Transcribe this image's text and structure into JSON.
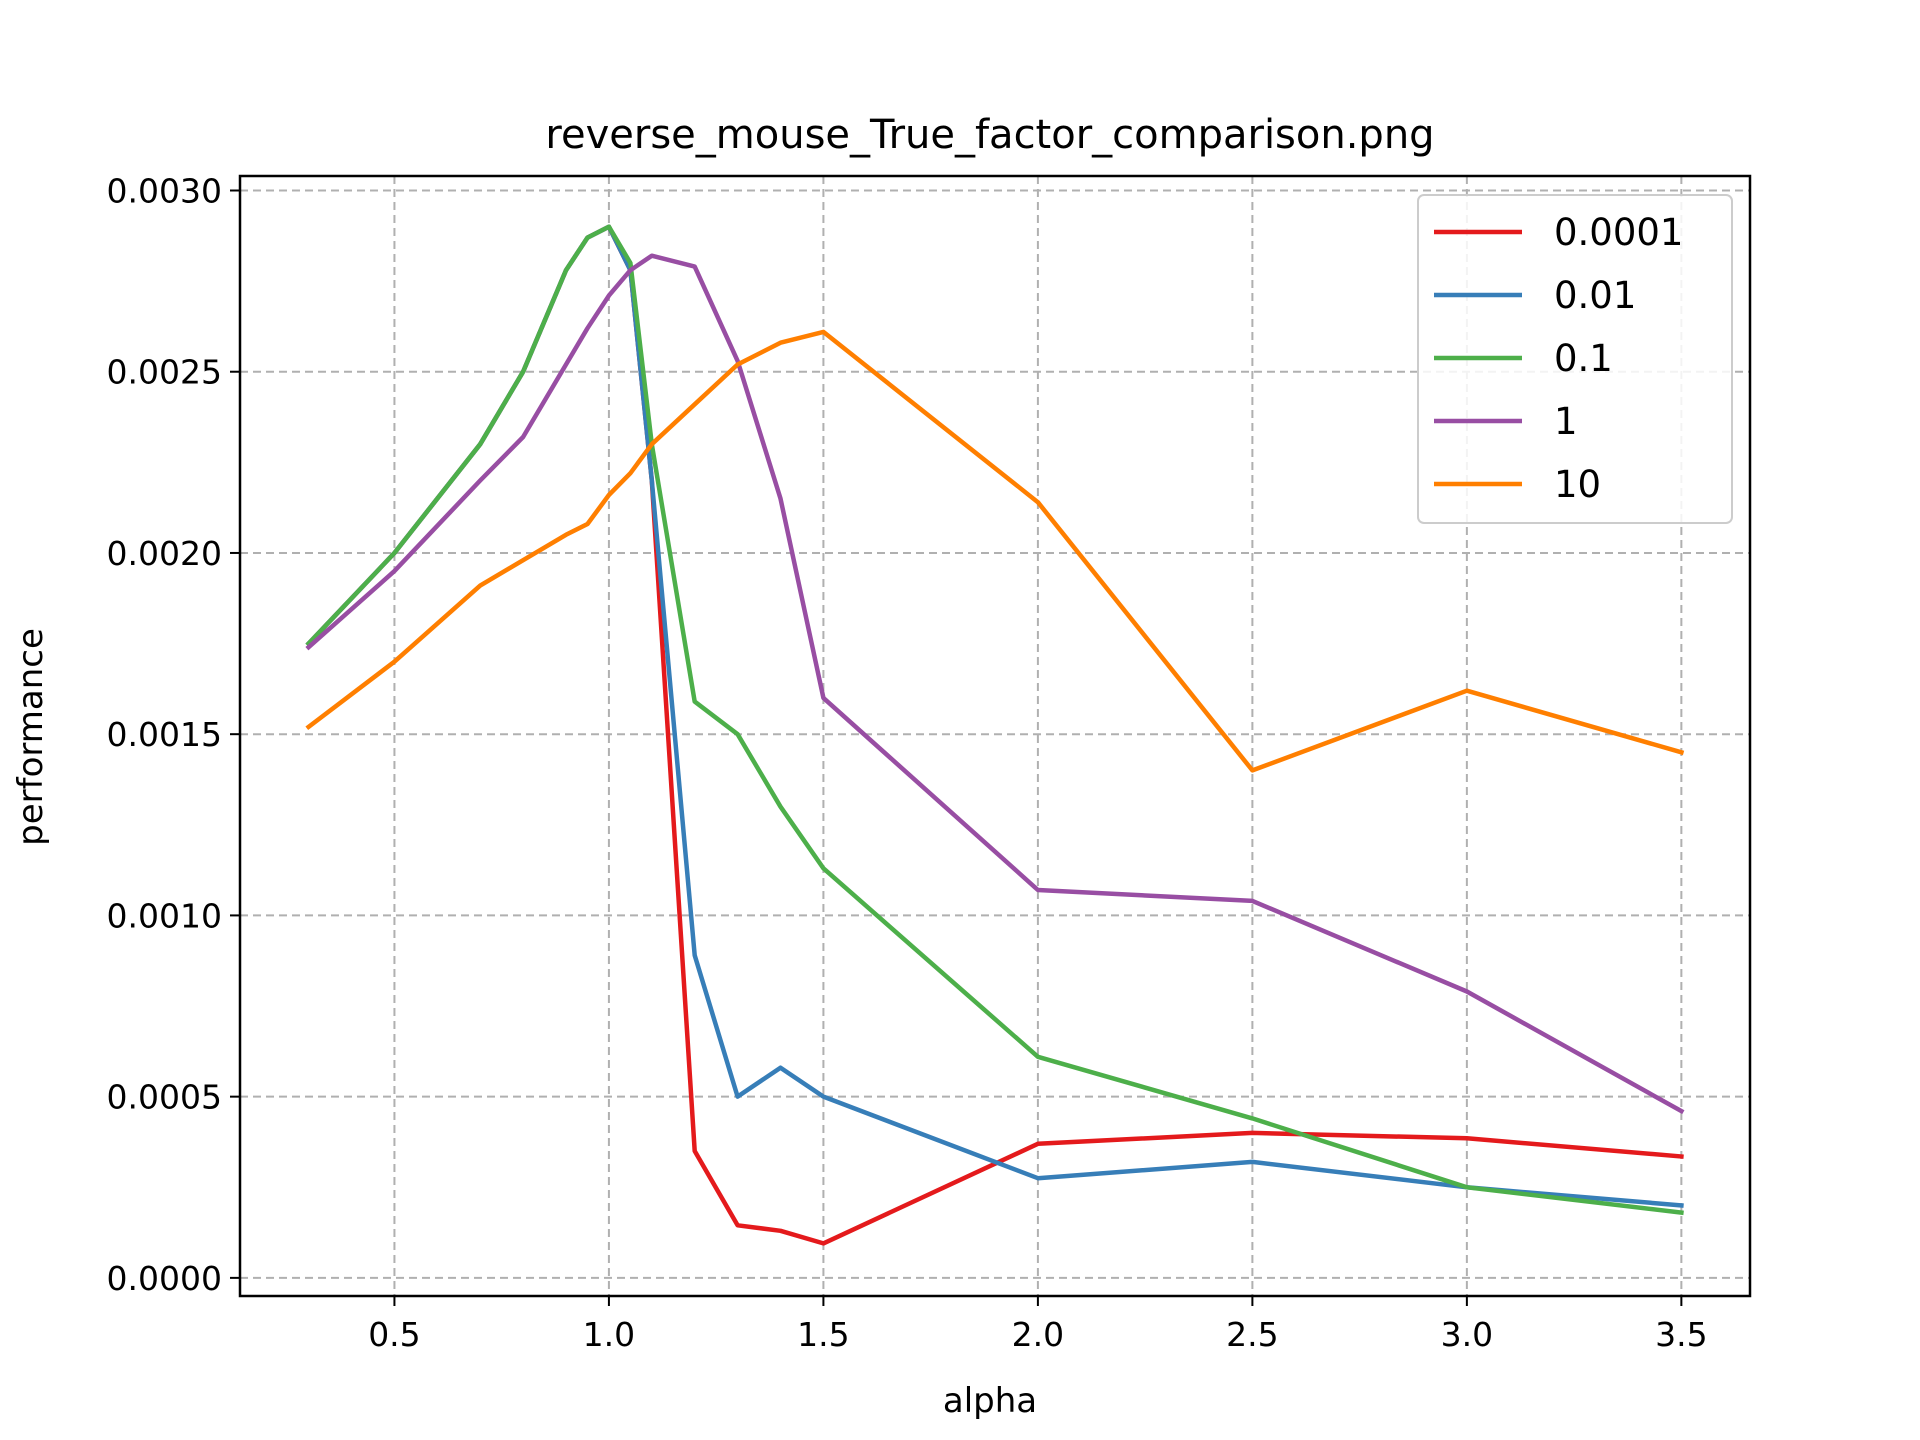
{
  "chart_data": {
    "type": "line",
    "title": "reverse_mouse_True_factor_comparison.png",
    "xlabel": "alpha",
    "ylabel": "performance",
    "xlim": [
      0.14,
      3.66
    ],
    "ylim": [
      -5e-05,
      0.00304
    ],
    "xticks": [
      0.5,
      1.0,
      1.5,
      2.0,
      2.5,
      3.0,
      3.5
    ],
    "xtick_labels": [
      "0.5",
      "1.0",
      "1.5",
      "2.0",
      "2.5",
      "3.0",
      "3.5"
    ],
    "yticks": [
      0.0,
      0.0005,
      0.001,
      0.0015,
      0.002,
      0.0025,
      0.003
    ],
    "ytick_labels": [
      "0.0000",
      "0.0005",
      "0.0010",
      "0.0015",
      "0.0020",
      "0.0025",
      "0.0030"
    ],
    "grid": true,
    "legend_position": "top-right",
    "x": [
      0.3,
      0.5,
      0.7,
      0.8,
      0.9,
      0.95,
      1.0,
      1.05,
      1.1,
      1.2,
      1.3,
      1.4,
      1.5,
      2.0,
      2.5,
      3.0,
      3.5
    ],
    "series": [
      {
        "name": "0.0001",
        "color": "#e41a1c",
        "values": [
          0.00175,
          0.002,
          0.0023,
          0.0025,
          0.00278,
          0.00287,
          0.0029,
          0.00278,
          0.0022,
          0.00035,
          0.000145,
          0.00013,
          9.5e-05,
          0.00037,
          0.0004,
          0.000385,
          0.000335
        ]
      },
      {
        "name": "0.01",
        "color": "#377eb8",
        "values": [
          0.00175,
          0.002,
          0.0023,
          0.0025,
          0.00278,
          0.00287,
          0.0029,
          0.00278,
          0.0022,
          0.00089,
          0.0005,
          0.00058,
          0.0005,
          0.000275,
          0.00032,
          0.00025,
          0.0002
        ]
      },
      {
        "name": "0.1",
        "color": "#4daf4a",
        "values": [
          0.00175,
          0.002,
          0.0023,
          0.0025,
          0.00278,
          0.00287,
          0.0029,
          0.0028,
          0.0023,
          0.00159,
          0.0015,
          0.0013,
          0.00113,
          0.00061,
          0.00044,
          0.00025,
          0.00018
        ]
      },
      {
        "name": "1",
        "color": "#984ea3",
        "values": [
          0.00174,
          0.00195,
          0.0022,
          0.00232,
          0.00252,
          0.00262,
          0.00271,
          0.00278,
          0.00282,
          0.00279,
          0.00253,
          0.00215,
          0.0016,
          0.00107,
          0.00104,
          0.00079,
          0.00046
        ]
      },
      {
        "name": "10",
        "color": "#ff7f00",
        "values": [
          0.00152,
          0.0017,
          0.00191,
          0.00198,
          0.00205,
          0.00208,
          0.00216,
          0.00222,
          0.0023,
          0.00241,
          0.00252,
          0.00258,
          0.00261,
          0.00214,
          0.0014,
          0.00162,
          0.00145
        ]
      }
    ]
  }
}
